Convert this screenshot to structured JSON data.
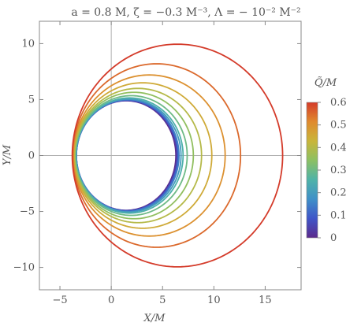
{
  "chart_data": {
    "type": "line",
    "title": "a = 0.8 M, ζ = −0.3 M⁻³, Λ = − 10⁻² M⁻²",
    "xlabel": "X/M",
    "ylabel": "Y/M",
    "xlim": [
      -7,
      18.5
    ],
    "ylim": [
      -12,
      12
    ],
    "xticks": [
      -5,
      0,
      5,
      10,
      15
    ],
    "xtick_labels": [
      "−5",
      "0",
      "5",
      "10",
      "15"
    ],
    "yticks": [
      -10,
      -5,
      0,
      5,
      10
    ],
    "ytick_labels": [
      "−10",
      "−5",
      "0",
      "5",
      "10"
    ],
    "grid": false,
    "axes_through_origin": true,
    "colorbar": {
      "title": "Q̃/M",
      "range": [
        0,
        0.6
      ],
      "ticks": [
        0,
        0.1,
        0.2,
        0.3,
        0.4,
        0.5,
        0.6
      ],
      "tick_labels": [
        "0",
        "0.1",
        "0.2",
        "0.3",
        "0.4",
        "0.5",
        "0.6"
      ],
      "colors": [
        "#5b2a8c",
        "#3f55c8",
        "#3f90c8",
        "#4fb3a8",
        "#8cc063",
        "#c9b53a",
        "#e08a2e",
        "#d43b2a"
      ]
    },
    "series": [
      {
        "q": 0.0,
        "xmin": -3.4,
        "xmax": 6.3,
        "yext": 4.9
      },
      {
        "q": 0.05,
        "xmin": -3.4,
        "xmax": 6.4,
        "yext": 4.92
      },
      {
        "q": 0.1,
        "xmin": -3.4,
        "xmax": 6.5,
        "yext": 4.95
      },
      {
        "q": 0.15,
        "xmin": -3.4,
        "xmax": 6.6,
        "yext": 5.0
      },
      {
        "q": 0.2,
        "xmin": -3.45,
        "xmax": 6.8,
        "yext": 5.05
      },
      {
        "q": 0.25,
        "xmin": -3.45,
        "xmax": 7.0,
        "yext": 5.15
      },
      {
        "q": 0.3,
        "xmin": -3.5,
        "xmax": 7.4,
        "yext": 5.35
      },
      {
        "q": 0.35,
        "xmin": -3.55,
        "xmax": 8.0,
        "yext": 5.65
      },
      {
        "q": 0.4,
        "xmin": -3.6,
        "xmax": 8.8,
        "yext": 6.0
      },
      {
        "q": 0.45,
        "xmin": -3.65,
        "xmax": 9.8,
        "yext": 6.5
      },
      {
        "q": 0.5,
        "xmin": -3.7,
        "xmax": 11.1,
        "yext": 7.2
      },
      {
        "q": 0.55,
        "xmin": -3.75,
        "xmax": 12.6,
        "yext": 8.2
      },
      {
        "q": 0.6,
        "xmin": -3.8,
        "xmax": 16.7,
        "yext": 9.95
      }
    ]
  }
}
